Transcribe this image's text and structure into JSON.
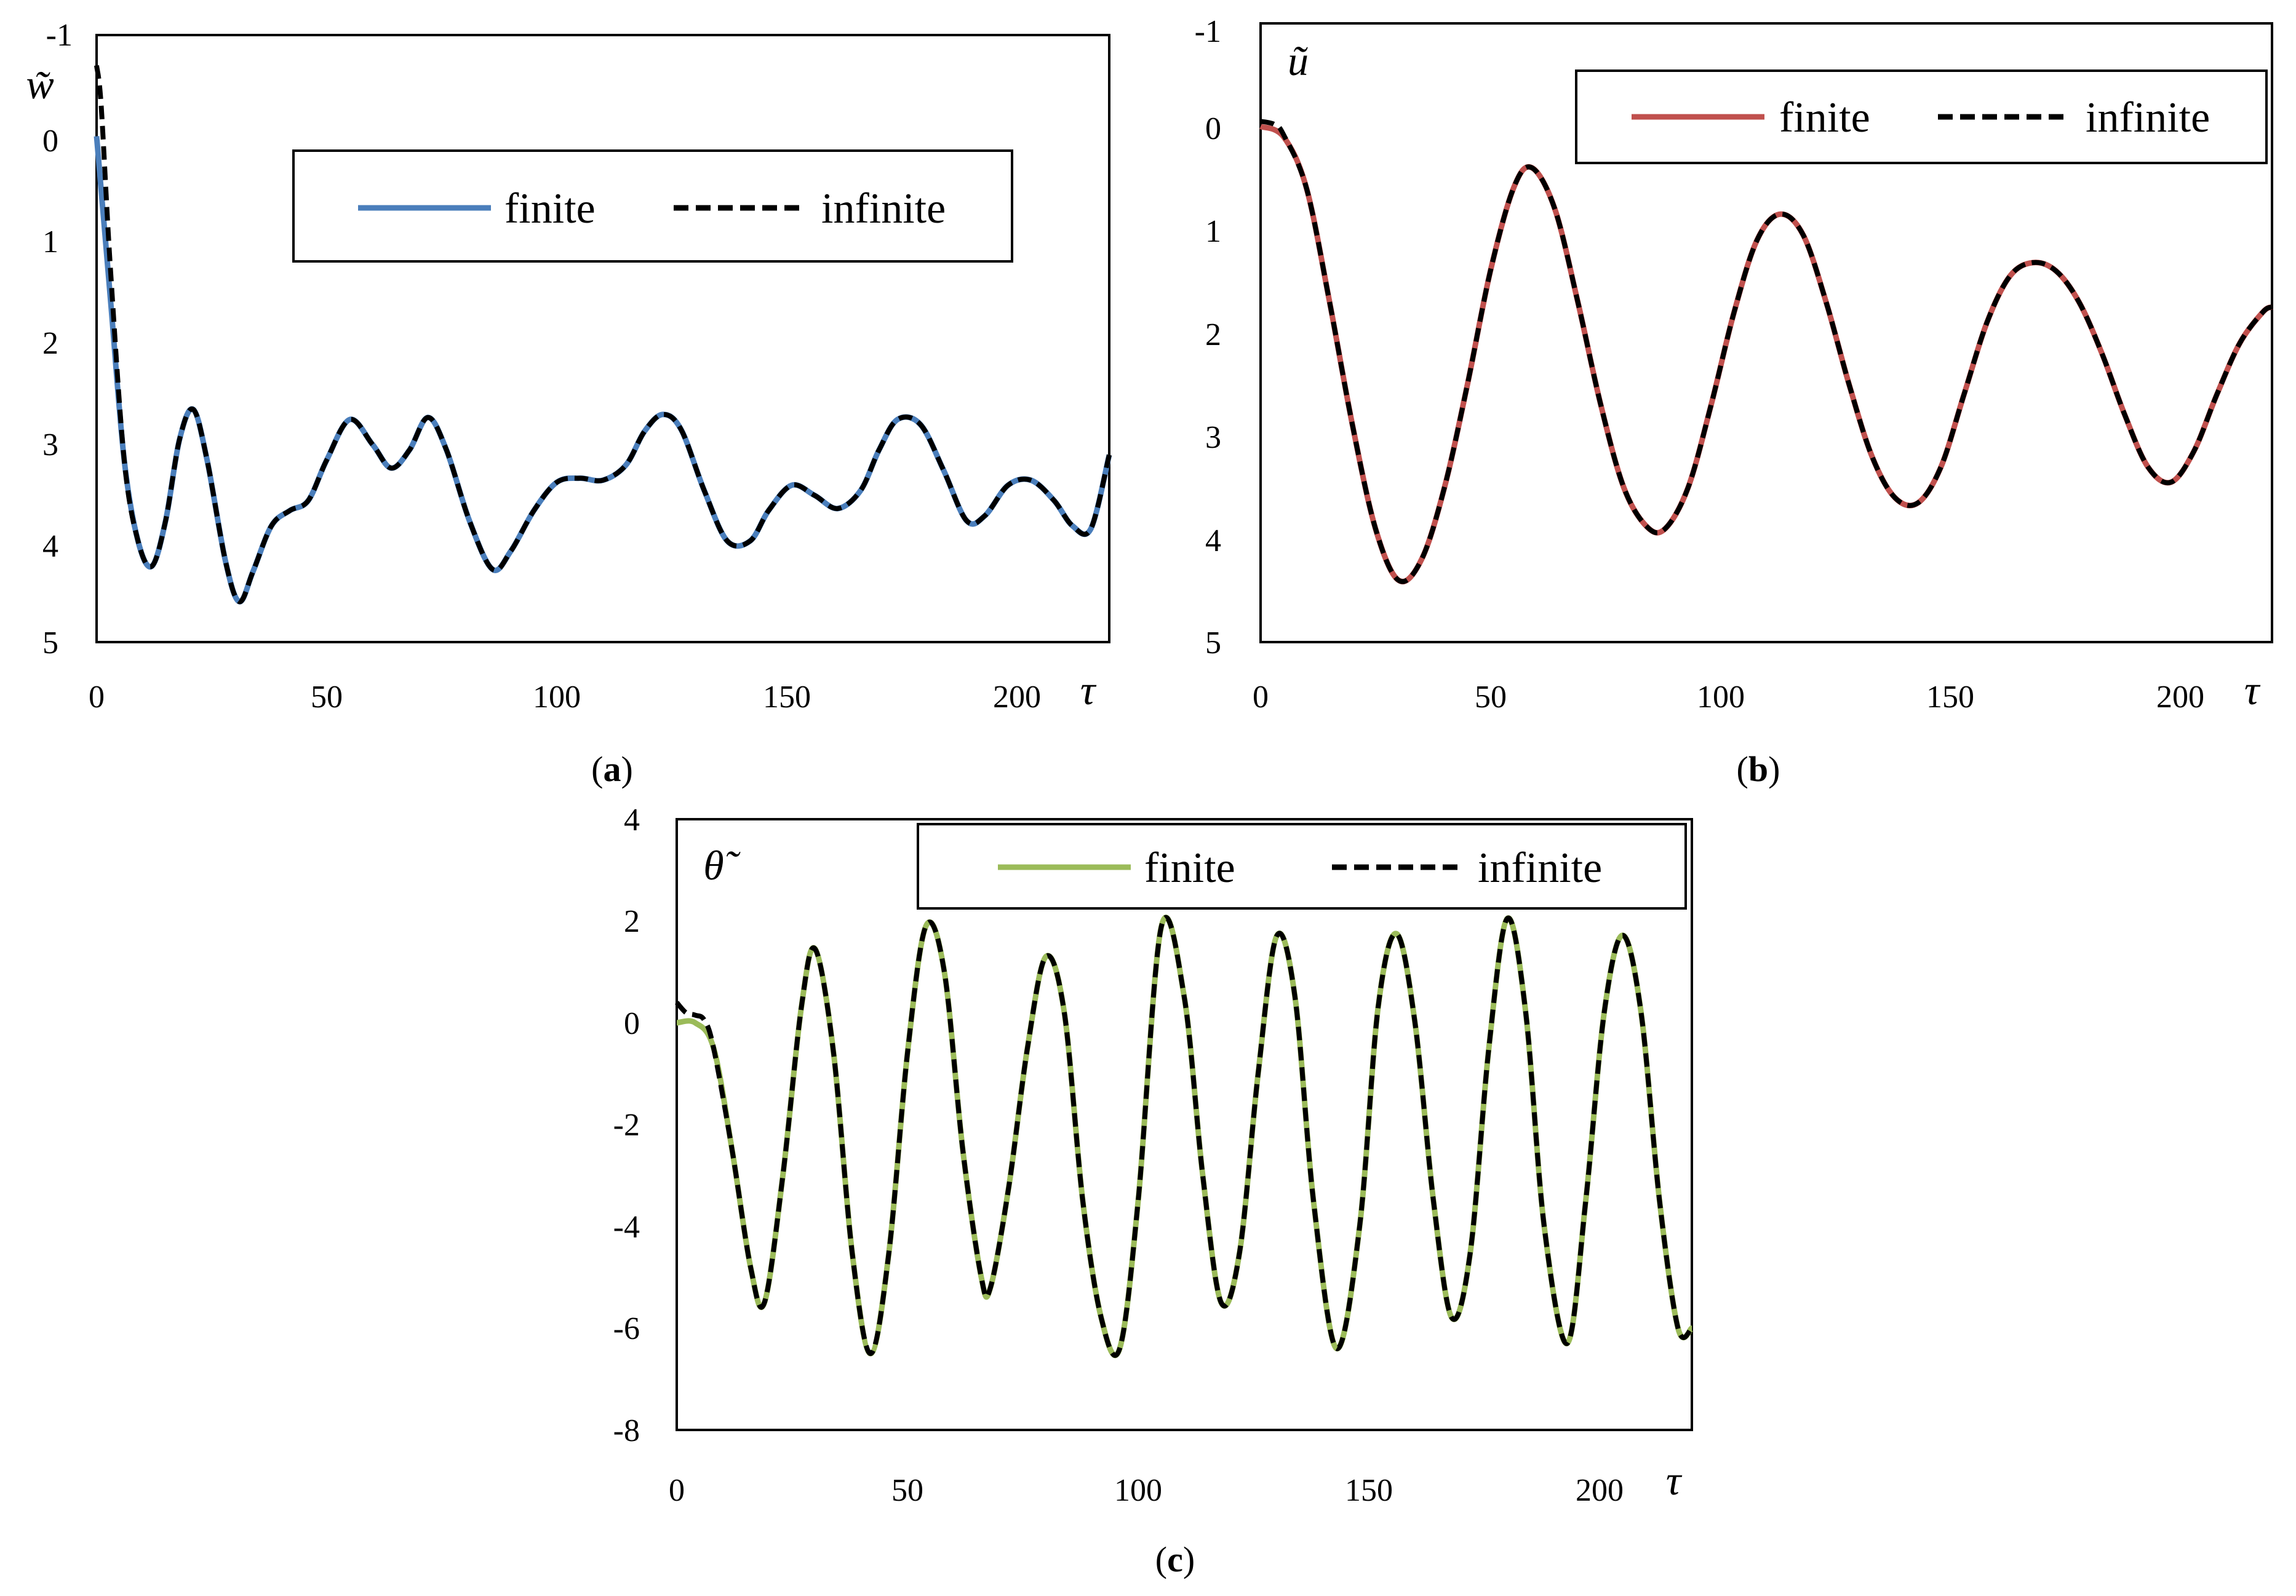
{
  "chart_data": [
    {
      "type": "line",
      "panel_label": "(a)",
      "ylabel": "w̃",
      "xlabel": "τ",
      "xlim": [
        0,
        220
      ],
      "ylim": [
        -1,
        5
      ],
      "y_inverted": true,
      "x_ticks": [
        "0",
        "50",
        "100",
        "150",
        "200"
      ],
      "y_ticks": [
        "-1",
        "0",
        "1",
        "2",
        "3",
        "4",
        "5"
      ],
      "legend_placement": "top-center",
      "grid": false,
      "series": [
        {
          "name": "finite",
          "color": "#4a7ebb",
          "style": "solid",
          "x": [
            0,
            3,
            6,
            9,
            12,
            15,
            18,
            21,
            24,
            28,
            31,
            34,
            38,
            42,
            46,
            50,
            55,
            60,
            64,
            68,
            72,
            76,
            81,
            86,
            90,
            95,
            100,
            105,
            110,
            115,
            119,
            123,
            127,
            132,
            137,
            142,
            146,
            151,
            156,
            161,
            166,
            170,
            174,
            179,
            184,
            189,
            193,
            198,
            203,
            208,
            212,
            216,
            220
          ],
          "y": [
            0.0,
            1.6,
            3.2,
            4.0,
            4.25,
            3.8,
            3.0,
            2.7,
            3.2,
            4.2,
            4.6,
            4.3,
            3.85,
            3.7,
            3.6,
            3.2,
            2.8,
            3.05,
            3.28,
            3.1,
            2.78,
            3.1,
            3.8,
            4.28,
            4.1,
            3.7,
            3.42,
            3.38,
            3.4,
            3.25,
            2.92,
            2.75,
            2.9,
            3.5,
            4.0,
            4.0,
            3.7,
            3.45,
            3.55,
            3.68,
            3.5,
            3.1,
            2.8,
            2.85,
            3.3,
            3.8,
            3.75,
            3.45,
            3.4,
            3.6,
            3.85,
            3.88,
            3.15
          ]
        },
        {
          "name": "infinite",
          "color": "#000000",
          "style": "dashed",
          "x": [
            0,
            1,
            3,
            6,
            9,
            12,
            15,
            18,
            21,
            24,
            28,
            31,
            34,
            38,
            42,
            46,
            50,
            55,
            60,
            64,
            68,
            72,
            76,
            81,
            86,
            90,
            95,
            100,
            105,
            110,
            115,
            119,
            123,
            127,
            132,
            137,
            142,
            146,
            151,
            156,
            161,
            166,
            170,
            174,
            179,
            184,
            189,
            193,
            198,
            203,
            208,
            212,
            216,
            220
          ],
          "y": [
            -0.7,
            -0.3,
            1.3,
            3.2,
            4.0,
            4.25,
            3.8,
            3.0,
            2.7,
            3.2,
            4.2,
            4.6,
            4.3,
            3.85,
            3.7,
            3.6,
            3.2,
            2.8,
            3.05,
            3.28,
            3.1,
            2.78,
            3.1,
            3.8,
            4.28,
            4.1,
            3.7,
            3.42,
            3.38,
            3.4,
            3.25,
            2.92,
            2.75,
            2.9,
            3.5,
            4.0,
            4.0,
            3.7,
            3.45,
            3.55,
            3.68,
            3.5,
            3.1,
            2.8,
            2.85,
            3.3,
            3.8,
            3.75,
            3.45,
            3.4,
            3.6,
            3.85,
            3.88,
            3.15
          ]
        }
      ]
    },
    {
      "type": "line",
      "panel_label": "(b)",
      "ylabel": "ũ",
      "xlabel": "τ",
      "xlim": [
        0,
        220
      ],
      "ylim": [
        -1,
        5
      ],
      "y_inverted": true,
      "x_ticks": [
        "0",
        "50",
        "100",
        "150",
        "200"
      ],
      "y_ticks": [
        "-1",
        "0",
        "1",
        "2",
        "3",
        "4",
        "5"
      ],
      "legend_placement": "top-right",
      "grid": false,
      "series": [
        {
          "name": "finite",
          "color": "#c0504d",
          "style": "solid",
          "x": [
            0,
            5,
            10,
            15,
            20,
            25,
            30,
            35,
            40,
            45,
            50,
            55,
            59,
            64,
            69,
            74,
            79,
            84,
            88,
            93,
            98,
            103,
            108,
            113,
            118,
            123,
            128,
            133,
            138,
            143,
            148,
            153,
            158,
            163,
            168,
            173,
            178,
            183,
            188,
            193,
            198,
            203,
            208,
            213,
            218,
            220
          ],
          "y": [
            0.0,
            0.1,
            0.6,
            1.7,
            2.9,
            3.9,
            4.4,
            4.2,
            3.5,
            2.5,
            1.4,
            0.6,
            0.4,
            0.8,
            1.7,
            2.7,
            3.5,
            3.88,
            3.9,
            3.5,
            2.7,
            1.8,
            1.1,
            0.85,
            1.05,
            1.7,
            2.5,
            3.2,
            3.6,
            3.65,
            3.3,
            2.6,
            1.9,
            1.45,
            1.32,
            1.4,
            1.7,
            2.2,
            2.8,
            3.3,
            3.45,
            3.15,
            2.6,
            2.1,
            1.8,
            1.75
          ]
        },
        {
          "name": "infinite",
          "color": "#000000",
          "style": "dashed",
          "x": [
            0,
            3,
            5,
            10,
            15,
            20,
            25,
            30,
            35,
            40,
            45,
            50,
            55,
            59,
            64,
            69,
            74,
            79,
            84,
            88,
            93,
            98,
            103,
            108,
            113,
            118,
            123,
            128,
            133,
            138,
            143,
            148,
            153,
            158,
            163,
            168,
            173,
            178,
            183,
            188,
            193,
            198,
            203,
            208,
            213,
            218,
            220
          ],
          "y": [
            -0.05,
            -0.02,
            0.08,
            0.6,
            1.7,
            2.9,
            3.9,
            4.4,
            4.2,
            3.5,
            2.5,
            1.4,
            0.6,
            0.4,
            0.8,
            1.7,
            2.7,
            3.5,
            3.88,
            3.9,
            3.5,
            2.7,
            1.8,
            1.1,
            0.85,
            1.05,
            1.7,
            2.5,
            3.2,
            3.6,
            3.65,
            3.3,
            2.6,
            1.9,
            1.45,
            1.32,
            1.4,
            1.7,
            2.2,
            2.8,
            3.3,
            3.45,
            3.15,
            2.6,
            2.1,
            1.8,
            1.75
          ]
        }
      ]
    },
    {
      "type": "line",
      "panel_label": "(c)",
      "ylabel": "θ̃",
      "xlabel": "τ",
      "xlim": [
        0,
        220
      ],
      "ylim": [
        -8,
        4
      ],
      "y_inverted": false,
      "x_ticks": [
        "0",
        "50",
        "100",
        "150",
        "200"
      ],
      "y_ticks": [
        "4",
        "2",
        "0",
        "-2",
        "-4",
        "-6",
        "-8"
      ],
      "legend_placement": "top-right",
      "grid": false,
      "series": [
        {
          "name": "finite",
          "color": "#9bbb59",
          "style": "solid",
          "x": [
            0,
            4,
            8,
            12,
            16,
            19,
            23,
            27,
            30,
            34,
            38,
            42,
            46,
            50,
            54,
            58,
            62,
            66,
            68,
            72,
            76,
            80,
            84,
            88,
            92,
            96,
            100,
            105,
            110,
            114,
            118,
            122,
            126,
            130,
            134,
            138,
            143,
            148,
            152,
            156,
            160,
            164,
            168,
            172,
            176,
            180,
            184,
            188,
            193,
            197,
            201,
            205,
            209,
            213,
            217,
            220
          ],
          "y": [
            0.0,
            0.0,
            -0.5,
            -2.5,
            -4.8,
            -5.5,
            -3.0,
            0.3,
            1.45,
            -0.6,
            -4.5,
            -6.5,
            -4.5,
            -0.6,
            1.9,
            1.0,
            -2.5,
            -5.0,
            -5.2,
            -3.2,
            -0.5,
            1.3,
            0.2,
            -3.5,
            -5.8,
            -6.4,
            -3.5,
            1.88,
            0.5,
            -3.0,
            -5.5,
            -4.5,
            -1.0,
            1.7,
            0.5,
            -3.5,
            -6.4,
            -4.0,
            0.3,
            1.75,
            0.0,
            -3.5,
            -5.8,
            -4.5,
            -0.5,
            2.05,
            0.2,
            -4.0,
            -6.3,
            -3.5,
            0.2,
            1.72,
            0.2,
            -3.5,
            -6.0,
            -6.0
          ]
        },
        {
          "name": "infinite",
          "color": "#000000",
          "style": "dashed",
          "x": [
            0,
            2,
            4,
            6,
            8,
            12,
            16,
            19,
            23,
            27,
            30,
            34,
            38,
            42,
            46,
            50,
            54,
            58,
            62,
            66,
            68,
            72,
            76,
            80,
            84,
            88,
            92,
            96,
            100,
            105,
            110,
            114,
            118,
            122,
            126,
            130,
            134,
            138,
            143,
            148,
            152,
            156,
            160,
            164,
            168,
            172,
            176,
            180,
            184,
            188,
            193,
            197,
            201,
            205,
            209,
            213,
            217,
            220
          ],
          "y": [
            0.4,
            0.2,
            0.15,
            0.05,
            -0.5,
            -2.5,
            -4.8,
            -5.5,
            -3.0,
            0.3,
            1.45,
            -0.6,
            -4.5,
            -6.5,
            -4.5,
            -0.6,
            1.9,
            1.0,
            -2.5,
            -5.0,
            -5.2,
            -3.2,
            -0.5,
            1.3,
            0.2,
            -3.5,
            -5.8,
            -6.4,
            -3.5,
            1.88,
            0.5,
            -3.0,
            -5.5,
            -4.5,
            -1.0,
            1.7,
            0.5,
            -3.5,
            -6.4,
            -4.0,
            0.3,
            1.75,
            0.0,
            -3.5,
            -5.8,
            -4.5,
            -0.5,
            2.05,
            0.2,
            -4.0,
            -6.3,
            -3.5,
            0.2,
            1.72,
            0.2,
            -3.5,
            -6.0,
            -6.0
          ]
        }
      ]
    }
  ]
}
